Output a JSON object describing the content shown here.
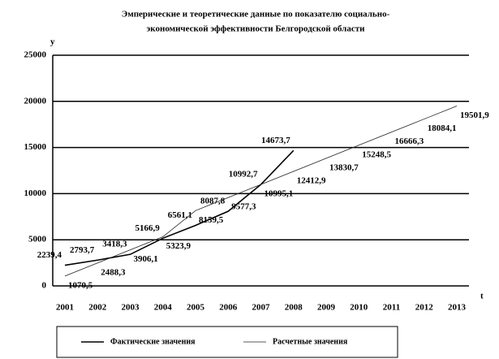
{
  "chart_data": {
    "type": "line",
    "title": "Эмперические и теоретические данные по показателю социально-экономической эффективности Белгородской области",
    "y_label": "у",
    "x_label": "t",
    "categories": [
      "2001",
      "2002",
      "2003",
      "2004",
      "2005",
      "2006",
      "2007",
      "2008",
      "2009",
      "2010",
      "2011",
      "2012",
      "2013"
    ],
    "series": [
      {
        "name": "Фактические значения",
        "color": "#000000",
        "width": 1.6,
        "values": [
          2239.4,
          2793.7,
          3418.3,
          5166.9,
          6561.1,
          8087.8,
          10992.7,
          14673.7,
          null,
          null,
          null,
          null,
          null
        ],
        "value_labels": [
          "2239,4",
          "2793,7",
          "3418,3",
          "5166,9",
          "6561,1",
          "8087,8",
          "10992,7",
          "14673,7",
          null,
          null,
          null,
          null,
          null
        ]
      },
      {
        "name": "Расчетные значения",
        "color": "#222222",
        "width": 0.8,
        "values": [
          1070.5,
          2488.3,
          3906.1,
          5323.9,
          8159.5,
          9577.3,
          10995.1,
          12412.9,
          13830.7,
          15248.5,
          16666.3,
          18084.1,
          19501.9
        ],
        "value_labels": [
          "1070,5",
          "2488,3",
          "3906,1",
          "5323,9",
          "8159,5",
          "9577,3",
          "10995,1",
          "12412,9",
          "13830,7",
          "15248,5",
          "16666,3",
          "18084,1",
          "19501,9"
        ]
      }
    ],
    "ylim": [
      0,
      25000
    ],
    "yticks": [
      0,
      5000,
      10000,
      15000,
      20000,
      25000
    ],
    "grid": true,
    "legend": "bottom"
  }
}
